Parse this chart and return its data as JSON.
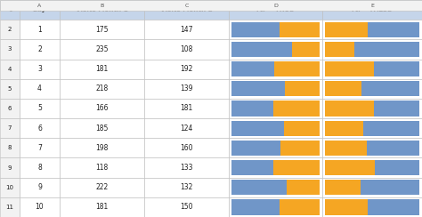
{
  "days": [
    1,
    2,
    3,
    4,
    5,
    6,
    7,
    8,
    9,
    10
  ],
  "visits_m1": [
    175,
    235,
    181,
    218,
    166,
    185,
    198,
    118,
    222,
    181
  ],
  "visits_m2": [
    147,
    108,
    192,
    139,
    181,
    124,
    160,
    133,
    132,
    150
  ],
  "header_labels": [
    "Day",
    "Visits Month 1",
    "Visits Month 2",
    "rtl = TRUE",
    "rtl = FALSE"
  ],
  "col_letters": [
    "",
    "A",
    "B",
    "C",
    "D",
    "E"
  ],
  "blue_color": "#7096C8",
  "orange_color": "#F5A623",
  "header_bg": "#C5D5EA",
  "grid_line_color": "#BBBBBB",
  "row_num_bg": "#F2F2F2",
  "bg_color": "#FFFFFF",
  "text_color": "#202020",
  "figsize": [
    4.74,
    2.44
  ],
  "dpi": 100
}
